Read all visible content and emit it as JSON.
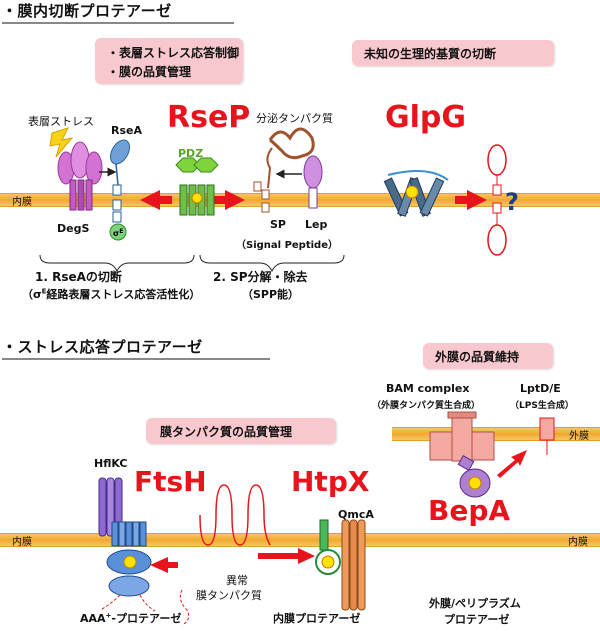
{
  "section1": {
    "heading": "・膜内切断プロテアーゼ",
    "box_left_line1": "・表層ストレス応答制御",
    "box_left_line2": "・膜の品質管理",
    "box_right": "未知の生理的基質の切断",
    "title_rsep": "RseP",
    "title_glpg": "GlpG",
    "label_surface_stress": "表層ストレス",
    "label_rsea": "RseA",
    "label_secretory": "分泌タンパク質",
    "label_pdz": "PDZ",
    "label_inner_membrane": "内膜",
    "label_degs": "DegS",
    "label_sigma": "σ",
    "label_sigma_sup": "E",
    "label_sp": "SP",
    "label_lep": "Lep",
    "label_signal_peptide": "（Signal Peptide）",
    "label_question": "?",
    "caption1_line1": "1. RseAの切断",
    "caption1_line2_pre": "（σ",
    "caption1_line2_sup": "E",
    "caption1_line2_post": "経路表層ストレス応答活性化）",
    "caption2_line1": "2. SP分解・除去",
    "caption2_line2": "（SPP能）"
  },
  "section2": {
    "heading": "・ストレス応答プロテアーゼ",
    "box_outer_quality": "外膜の品質維持",
    "box_membrane_quality": "膜タンパク質の品質管理",
    "label_bam": "BAM complex",
    "label_bam_sub": "（外膜タンパク質生合成）",
    "label_lptd": "LptD/E",
    "label_lptd_sub": "（LPS生合成）",
    "label_outer_membrane": "外膜",
    "label_hflkc": "HflKC",
    "title_ftsh": "FtsH",
    "title_htpx": "HtpX",
    "title_bepa": "BepA",
    "label_qmca": "QmcA",
    "label_inner_membrane_left": "内膜",
    "label_inner_membrane_right": "内膜",
    "label_abnormal_line1": "異常",
    "label_abnormal_line2": "膜タンパク質",
    "label_aaa_pre": "AAA",
    "label_aaa_sup": "+",
    "label_aaa_post": "-プロテアーゼ",
    "label_inner_protease": "内膜プロテアーゼ",
    "label_periplasm_line1": "外膜/ペリプラズム",
    "label_periplasm_line2": "プロテアーゼ"
  },
  "colors": {
    "red_title": "#e8141b",
    "pink_box": "#f9c8ce",
    "membrane": "#f1a92e",
    "degs_purple": "#c45bc4",
    "green": "#3cb44b",
    "glpg_blue": "#3a8fd0",
    "arrow_red": "#e8141b"
  }
}
